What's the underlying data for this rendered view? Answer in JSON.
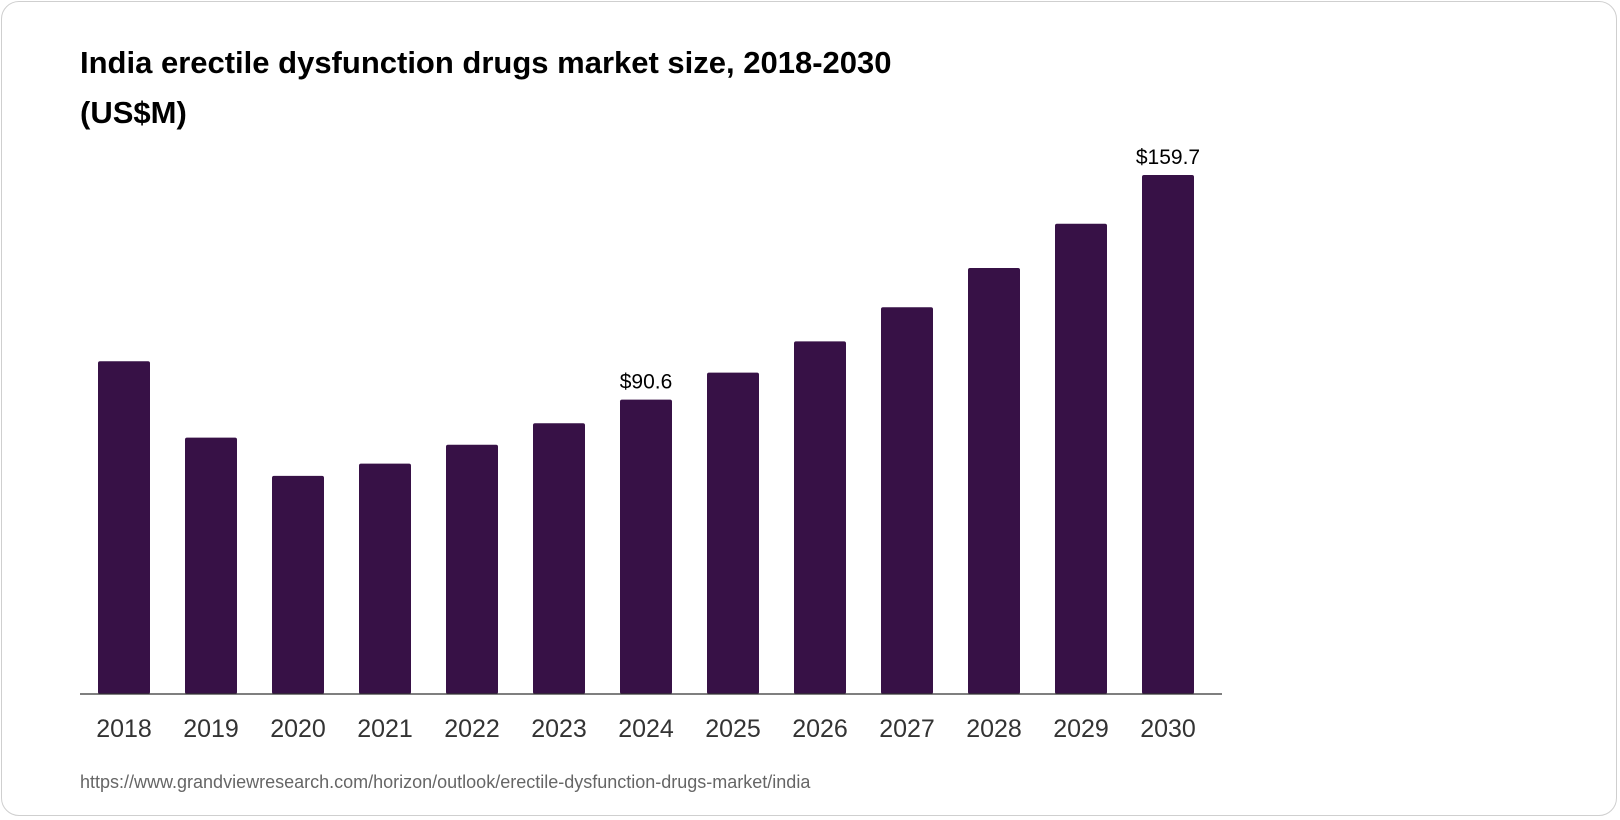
{
  "chart_data": {
    "type": "bar",
    "title_line1": "India erectile dysfunction drugs market size, 2018-2030",
    "title_line2": "(US$M)",
    "categories": [
      "2018",
      "2019",
      "2020",
      "2021",
      "2022",
      "2023",
      "2024",
      "2025",
      "2026",
      "2027",
      "2028",
      "2029",
      "2030"
    ],
    "values": [
      102.4,
      78.9,
      67.1,
      70.9,
      76.7,
      83.3,
      90.6,
      98.9,
      108.5,
      119.0,
      131.1,
      144.7,
      159.7
    ],
    "data_labels": {
      "2024": "$90.6",
      "2030": "$159.7"
    },
    "xlabel": "",
    "ylabel": "US$M",
    "ylim": [
      0,
      159.7
    ],
    "grid": false,
    "bar_color": "#371146"
  },
  "source": "https://www.grandviewresearch.com/horizon/outlook/erectile-dysfunction-drugs-market/india"
}
